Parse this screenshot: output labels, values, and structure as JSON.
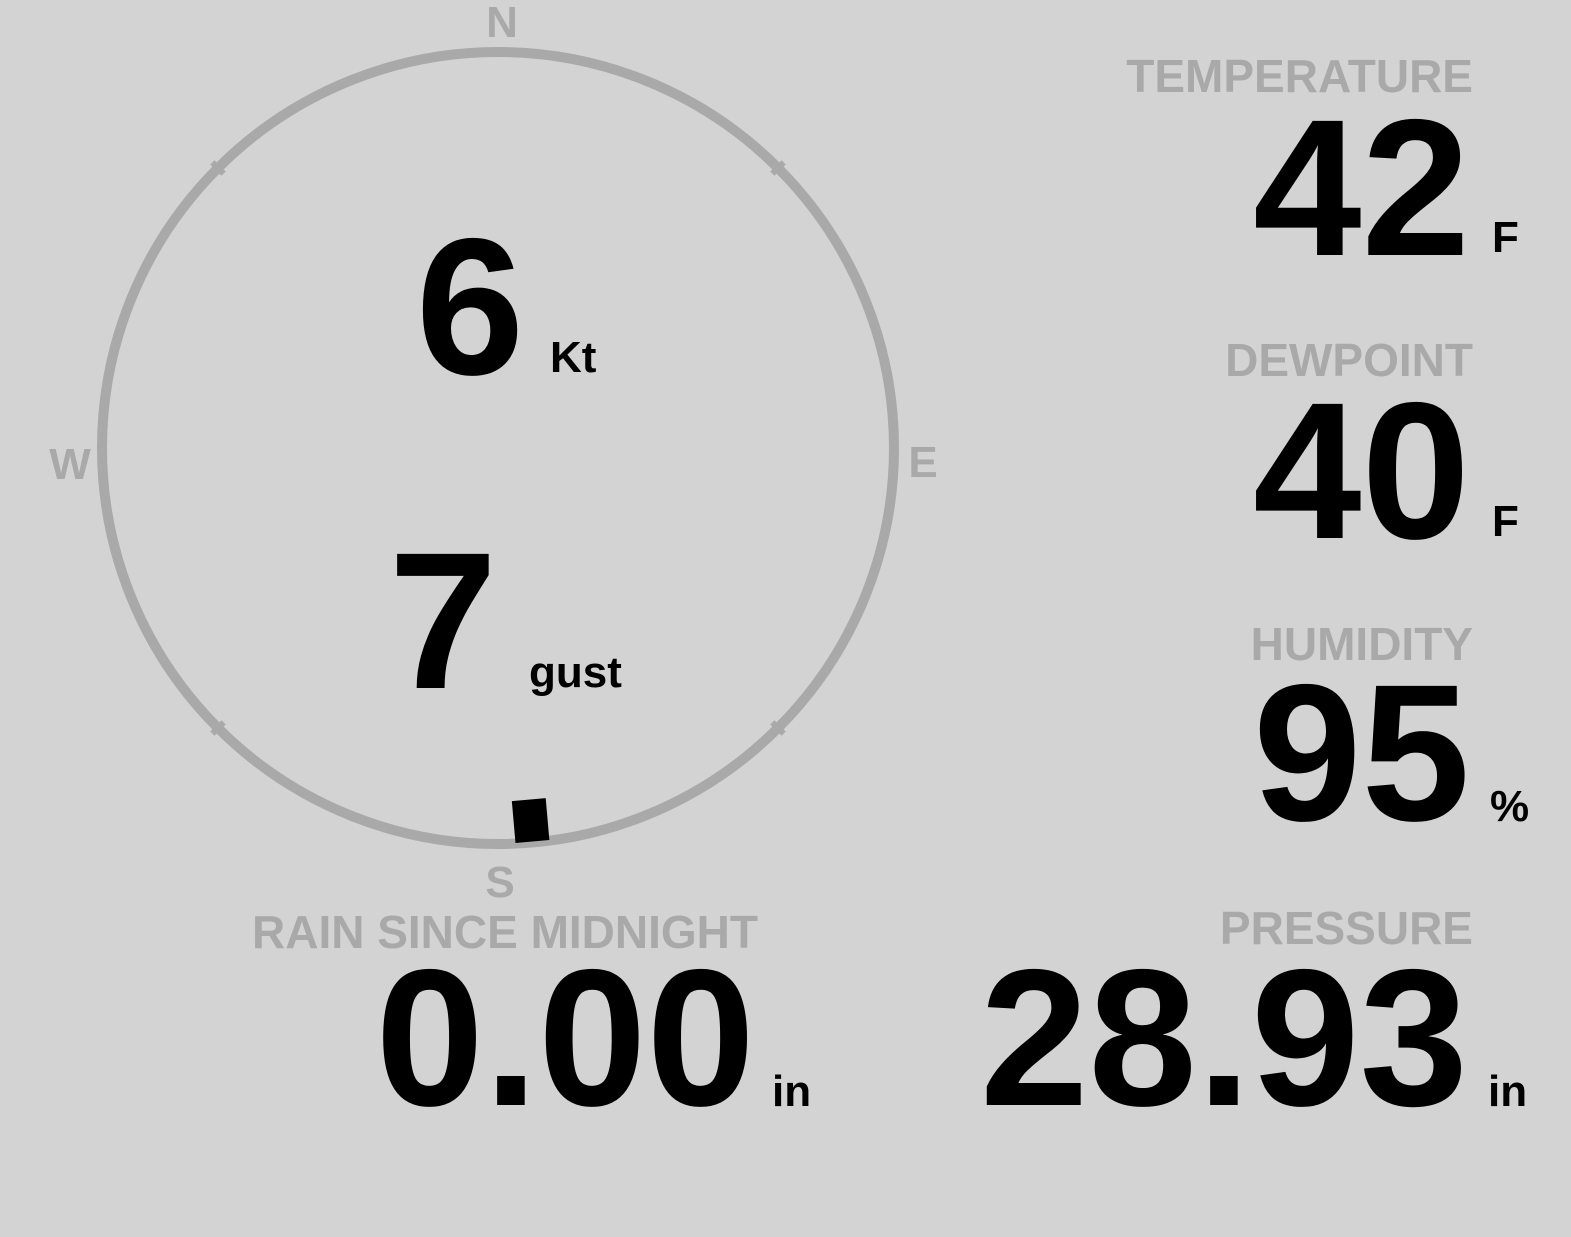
{
  "colors": {
    "background": "#d3d3d3",
    "label": "#a9a9a9",
    "value": "#000000",
    "ring": "#a9a9a9"
  },
  "wind": {
    "compass": {
      "n": "N",
      "e": "E",
      "s": "S",
      "w": "W"
    },
    "direction_deg": 175,
    "speed": "6",
    "speed_unit": "Kt",
    "gust": "7",
    "gust_unit": "gust"
  },
  "temperature": {
    "label": "TEMPERATURE",
    "value": "42",
    "unit": "F"
  },
  "dewpoint": {
    "label": "DEWPOINT",
    "value": "40",
    "unit": "F"
  },
  "humidity": {
    "label": "HUMIDITY",
    "value": "95",
    "unit": "%"
  },
  "rain": {
    "label": "RAIN SINCE MIDNIGHT",
    "value": "0.00",
    "unit": "in"
  },
  "pressure": {
    "label": "PRESSURE",
    "value": "28.93",
    "unit": "in"
  }
}
